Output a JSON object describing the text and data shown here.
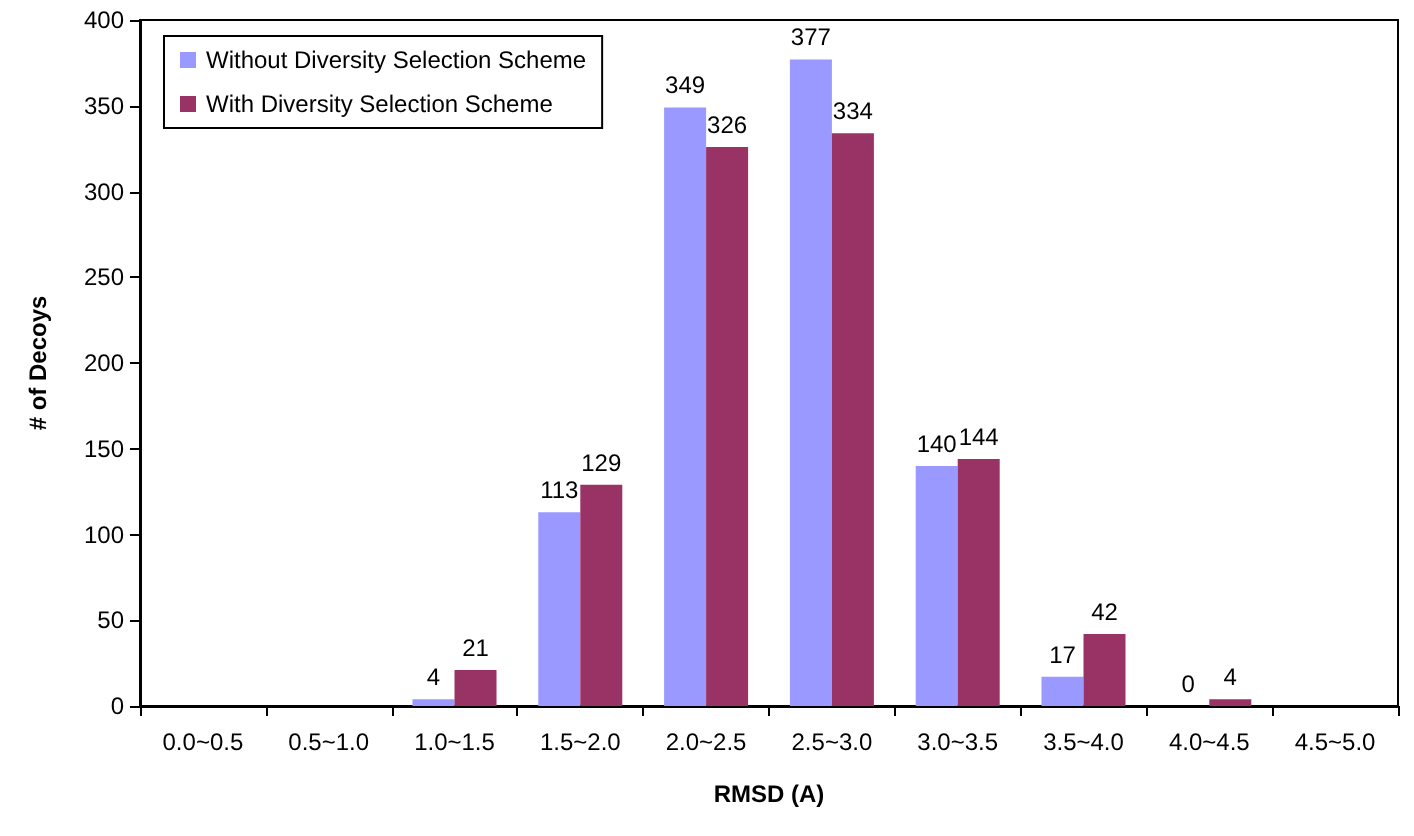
{
  "chart_data": {
    "type": "bar",
    "xlabel": "RMSD (A)",
    "ylabel": "# of Decoys",
    "categories": [
      "0.0~0.5",
      "0.5~1.0",
      "1.0~1.5",
      "1.5~2.0",
      "2.0~2.5",
      "2.5~3.0",
      "3.0~3.5",
      "3.5~4.0",
      "4.0~4.5",
      "4.5~5.0"
    ],
    "series": [
      {
        "name": "Without Diversity Selection Scheme",
        "color": "#9999ff",
        "values": [
          null,
          null,
          4,
          113,
          349,
          377,
          140,
          17,
          0,
          null
        ]
      },
      {
        "name": "With Diversity Selection Scheme",
        "color": "#993366",
        "values": [
          null,
          null,
          21,
          129,
          326,
          334,
          144,
          42,
          4,
          null
        ]
      }
    ],
    "ylim": [
      0,
      400
    ],
    "yticks": [
      0,
      50,
      100,
      150,
      200,
      250,
      300,
      350,
      400
    ],
    "grid": false,
    "legend": "top left",
    "data_labels": true
  }
}
